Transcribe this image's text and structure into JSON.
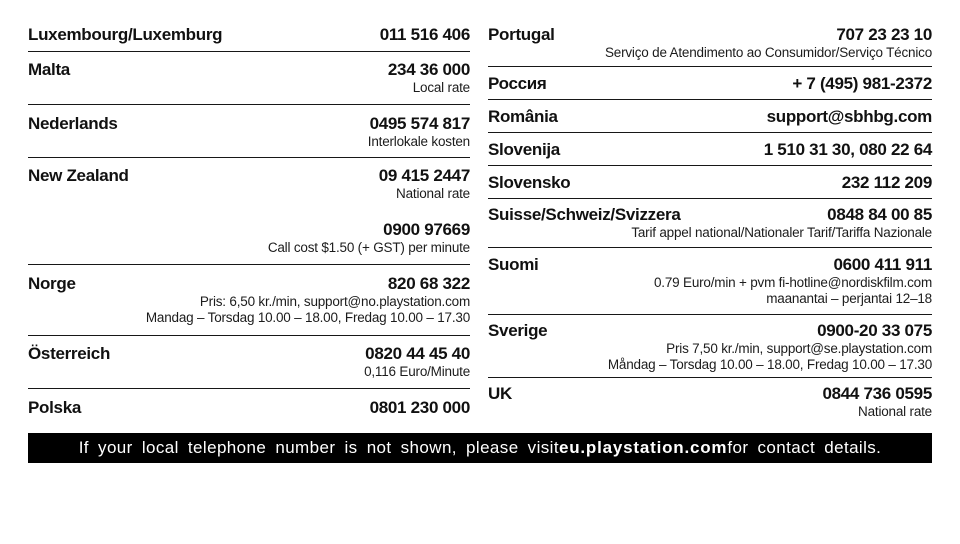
{
  "page": {
    "background": "#ffffff",
    "text_color": "#111111",
    "divider_color": "#171717"
  },
  "table": {
    "columns": [
      {
        "rows": [
          {
            "country": "Luxembourg/Luxemburg",
            "contact": "011 516 406",
            "details": []
          },
          {
            "country": "Malta",
            "contact": "234 36 000",
            "details": [
              "Local rate"
            ]
          },
          {
            "country": "Nederlands",
            "contact": "0495 574 817",
            "details": [
              "Interlokale kosten"
            ]
          },
          {
            "country": "New Zealand",
            "contact": "09 415 2447",
            "details": [
              "National rate"
            ],
            "extra": {
              "contact": "0900 97669",
              "details": [
                "Call cost $1.50 (+ GST) per minute"
              ]
            }
          },
          {
            "country": "Norge",
            "contact": "820 68 322",
            "details": [
              "Pris: 6,50 kr./min, support@no.playstation.com",
              "Mandag – Torsdag 10.00 – 18.00, Fredag 10.00 – 17.30"
            ]
          },
          {
            "country": "Österreich",
            "contact": "0820 44 45 40",
            "details": [
              "0,116 Euro/Minute"
            ]
          },
          {
            "country": "Polska",
            "contact": "0801 230 000",
            "details": []
          }
        ]
      },
      {
        "rows": [
          {
            "country": "Portugal",
            "contact": "707 23 23 10",
            "details": [
              "Serviço de Atendimento ao Consumidor/Serviço Técnico"
            ]
          },
          {
            "country": "Россия",
            "contact": "+ 7 (495) 981-2372",
            "details": []
          },
          {
            "country": "România",
            "contact": "support@sbhbg.com",
            "details": []
          },
          {
            "country": "Slovenija",
            "contact": "1 510 31 30, 080 22 64",
            "details": []
          },
          {
            "country": "Slovensko",
            "contact": "232 112 209",
            "details": []
          },
          {
            "country": "Suisse/Schweiz/Svizzera",
            "contact": "0848 84 00 85",
            "details": [
              "Tarif appel national/Nationaler Tarif/Tariffa Nazionale"
            ]
          },
          {
            "country": "Suomi",
            "contact": "0600 411 911",
            "details": [
              "0.79 Euro/min + pvm fi-hotline@nordiskfilm.com",
              "maanantai – perjantai 12–18"
            ]
          },
          {
            "country": "Sverige",
            "contact": "0900-20 33 075",
            "details": [
              "Pris 7,50 kr./min, support@se.playstation.com",
              "Måndag – Torsdag 10.00 – 18.00, Fredag 10.00 – 17.30"
            ]
          },
          {
            "country": "UK",
            "contact": "0844 736 0595",
            "details": [
              "National rate"
            ]
          }
        ]
      }
    ]
  },
  "footer": {
    "text_before": "If your local telephone number is not shown, please visit ",
    "link": "eu.playstation.com",
    "text_after": " for contact details.",
    "background": "#000000",
    "text_color": "#ffffff"
  }
}
